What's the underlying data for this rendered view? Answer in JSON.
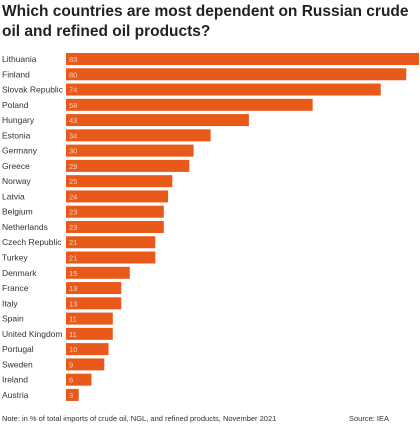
{
  "title": "Which countries are most dependent on Russian crude oil and refined oil products?",
  "note": "Note: in % of total imports of crude oil, NGL, and refined products, November 2021",
  "source": "Source: IEA",
  "colors": {
    "bar": "#e8591a",
    "label_inside": "#f3d2c0",
    "category_text": "#333333"
  },
  "chart_data": {
    "type": "bar",
    "orientation": "horizontal",
    "title": "Which countries are most dependent on Russian crude oil and refined oil products?",
    "xlim": [
      0,
      83
    ],
    "grid": false,
    "categories": [
      "Lithuania",
      "Finland",
      "Slovak Republic",
      "Poland",
      "Hungary",
      "Estonia",
      "Germany",
      "Greece",
      "Norway",
      "Latvia",
      "Belgium",
      "Netherlands",
      "Czech Republic",
      "Turkey",
      "Denmark",
      "France",
      "Italy",
      "Spain",
      "United Kingdom",
      "Portugal",
      "Sweden",
      "Ireland",
      "Austria"
    ],
    "values": [
      83,
      80,
      74,
      58,
      43,
      34,
      30,
      29,
      25,
      24,
      23,
      23,
      21,
      21,
      15,
      13,
      13,
      11,
      11,
      10,
      9,
      6,
      3
    ]
  }
}
